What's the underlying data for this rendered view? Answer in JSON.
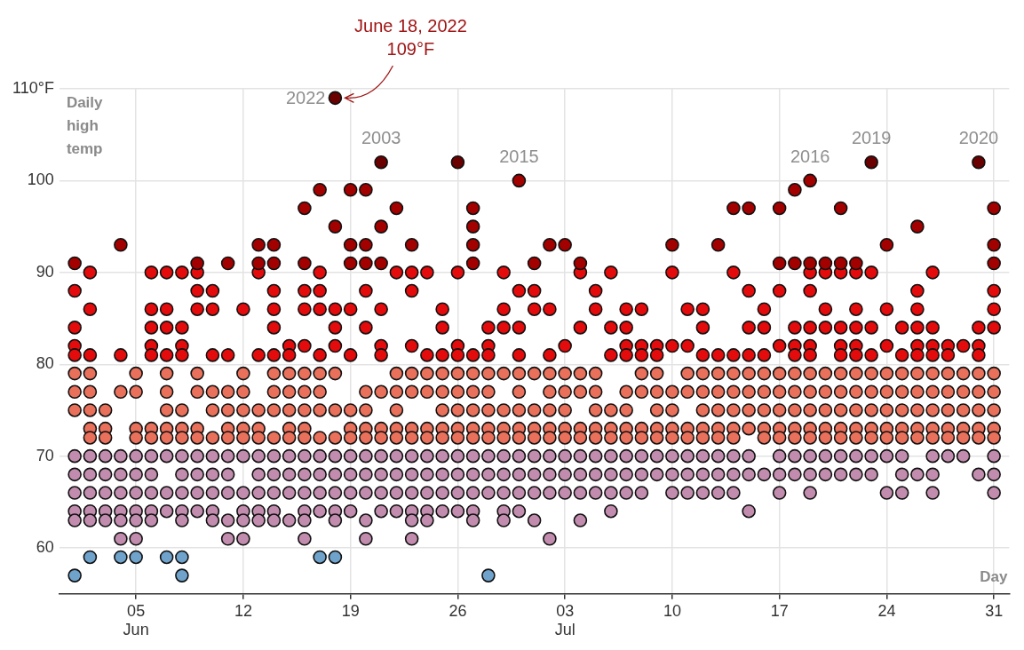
{
  "chart_data": {
    "type": "scatter",
    "ylabel": "Daily high temp",
    "xlabel": "Day",
    "marker": "circle",
    "grid": true,
    "legend": false,
    "xlim": [
      "--05-31",
      "--08-01"
    ],
    "xticks": [
      {
        "value": "--06-05",
        "label": "05\nJun"
      },
      {
        "value": "--06-12",
        "label": "12"
      },
      {
        "value": "--06-19",
        "label": "19"
      },
      {
        "value": "--06-26",
        "label": "26"
      },
      {
        "value": "--07-03",
        "label": "03\nJul"
      },
      {
        "value": "--07-10",
        "label": "10"
      },
      {
        "value": "--07-17",
        "label": "17"
      },
      {
        "value": "--07-24",
        "label": "24"
      },
      {
        "value": "--07-31",
        "label": "31"
      }
    ],
    "ylim": [
      55,
      110
    ],
    "yticks": [
      60,
      70,
      80,
      90,
      100,
      {
        "value": 110,
        "label": "110°F"
      }
    ],
    "annotations": [
      {
        "text": "June 18, 2022\n109°F",
        "x": "--06-18",
        "y": 109
      },
      {
        "text": "2022",
        "x": "--06-18",
        "y": 109
      },
      {
        "text": "2003",
        "x": "--06-21",
        "y": 102
      },
      {
        "text": "2015",
        "x": "--06-30",
        "y": 100
      },
      {
        "text": "2016",
        "x": "--07-19",
        "y": 100
      },
      {
        "text": "2019",
        "x": "--07-23",
        "y": 102
      },
      {
        "text": "2020",
        "x": "--07-30",
        "y": 102
      }
    ],
    "series": [
      {
        "color": "#6a0000",
        "x": [
          "--06-18",
          "--06-21",
          "--06-26",
          "--07-23",
          "--07-30"
        ],
        "values": [
          109,
          102,
          102,
          102,
          102
        ]
      },
      {
        "color": "#a30000",
        "x": [
          "--06-01",
          "--06-04",
          "--06-09",
          "--06-11",
          "--06-13",
          "--06-13",
          "--06-14",
          "--06-14",
          "--06-16",
          "--06-16",
          "--06-17",
          "--06-18",
          "--06-19",
          "--06-19",
          "--06-19",
          "--06-20",
          "--06-20",
          "--06-20",
          "--06-21",
          "--06-21",
          "--06-22",
          "--06-23",
          "--06-27",
          "--06-27",
          "--06-27",
          "--06-27",
          "--06-30",
          "--07-01",
          "--07-02",
          "--07-03",
          "--07-04",
          "--07-10",
          "--07-13",
          "--07-14",
          "--07-15",
          "--07-17",
          "--07-17",
          "--07-18",
          "--07-18",
          "--07-19",
          "--07-19",
          "--07-20",
          "--07-21",
          "--07-21",
          "--07-22",
          "--07-24",
          "--07-26",
          "--07-31",
          "--07-31",
          "--07-31"
        ],
        "values": [
          91,
          93,
          91,
          91,
          93,
          91,
          93,
          91,
          97,
          91,
          99,
          95,
          99,
          93,
          91,
          99,
          93,
          91,
          95,
          91,
          97,
          93,
          97,
          95,
          93,
          91,
          100,
          91,
          93,
          93,
          91,
          93,
          93,
          97,
          97,
          97,
          91,
          99,
          91,
          100,
          91,
          91,
          97,
          91,
          91,
          93,
          95,
          97,
          93,
          91
        ]
      },
      {
        "color": "#e30b0b",
        "x": [
          "--06-01",
          "--06-01",
          "--06-01",
          "--06-01",
          "--06-02",
          "--06-02",
          "--06-02",
          "--06-04",
          "--06-06",
          "--06-06",
          "--06-06",
          "--06-06",
          "--06-06",
          "--06-07",
          "--06-07",
          "--06-07",
          "--06-07",
          "--06-08",
          "--06-08",
          "--06-08",
          "--06-08",
          "--06-09",
          "--06-09",
          "--06-09",
          "--06-10",
          "--06-10",
          "--06-10",
          "--06-11",
          "--06-12",
          "--06-13",
          "--06-13",
          "--06-14",
          "--06-14",
          "--06-14",
          "--06-14",
          "--06-15",
          "--06-15",
          "--06-16",
          "--06-16",
          "--06-16",
          "--06-17",
          "--06-17",
          "--06-17",
          "--06-17",
          "--06-18",
          "--06-18",
          "--06-18",
          "--06-19",
          "--06-19",
          "--06-20",
          "--06-20",
          "--06-21",
          "--06-21",
          "--06-21",
          "--06-22",
          "--06-23",
          "--06-23",
          "--06-23",
          "--06-24",
          "--06-24",
          "--06-25",
          "--06-25",
          "--06-25",
          "--06-26",
          "--06-26",
          "--06-26",
          "--06-27",
          "--06-28",
          "--06-28",
          "--06-28",
          "--06-29",
          "--06-29",
          "--06-29",
          "--06-30",
          "--06-30",
          "--06-30",
          "--07-01",
          "--07-01",
          "--07-02",
          "--07-02",
          "--07-03",
          "--07-04",
          "--07-04",
          "--07-05",
          "--07-05",
          "--07-06",
          "--07-06",
          "--07-06",
          "--07-07",
          "--07-07",
          "--07-07",
          "--07-07",
          "--07-08",
          "--07-08",
          "--07-08",
          "--07-09",
          "--07-09",
          "--07-10",
          "--07-10",
          "--07-11",
          "--07-11",
          "--07-12",
          "--07-12",
          "--07-12",
          "--07-13",
          "--07-14",
          "--07-14",
          "--07-15",
          "--07-15",
          "--07-15",
          "--07-16",
          "--07-16",
          "--07-16",
          "--07-17",
          "--07-17",
          "--07-18",
          "--07-18",
          "--07-18",
          "--07-19",
          "--07-19",
          "--07-19",
          "--07-19",
          "--07-19",
          "--07-20",
          "--07-20",
          "--07-20",
          "--07-21",
          "--07-21",
          "--07-21",
          "--07-21",
          "--07-22",
          "--07-22",
          "--07-22",
          "--07-22",
          "--07-22",
          "--07-23",
          "--07-23",
          "--07-23",
          "--07-24",
          "--07-24",
          "--07-25",
          "--07-25",
          "--07-26",
          "--07-26",
          "--07-26",
          "--07-26",
          "--07-26",
          "--07-27",
          "--07-27",
          "--07-27",
          "--07-27",
          "--07-28",
          "--07-28",
          "--07-29",
          "--07-30",
          "--07-30",
          "--07-30",
          "--07-31",
          "--07-31",
          "--07-31"
        ],
        "values": [
          88,
          84,
          82,
          81,
          90,
          86,
          81,
          81,
          90,
          86,
          84,
          82,
          81,
          90,
          86,
          84,
          81,
          90,
          84,
          82,
          81,
          90,
          88,
          86,
          88,
          86,
          81,
          81,
          86,
          90,
          81,
          88,
          86,
          84,
          81,
          82,
          81,
          88,
          86,
          82,
          90,
          88,
          86,
          81,
          86,
          84,
          82,
          86,
          81,
          88,
          84,
          86,
          82,
          81,
          90,
          90,
          88,
          82,
          90,
          81,
          86,
          84,
          81,
          90,
          82,
          81,
          81,
          84,
          82,
          81,
          90,
          86,
          84,
          88,
          84,
          81,
          88,
          86,
          86,
          81,
          82,
          90,
          84,
          88,
          86,
          90,
          84,
          81,
          86,
          84,
          82,
          81,
          86,
          82,
          81,
          82,
          81,
          90,
          82,
          86,
          82,
          86,
          84,
          81,
          81,
          90,
          81,
          88,
          84,
          81,
          86,
          84,
          81,
          88,
          82,
          84,
          82,
          81,
          90,
          88,
          84,
          82,
          81,
          90,
          86,
          84,
          90,
          84,
          82,
          81,
          90,
          86,
          84,
          82,
          81,
          90,
          84,
          81,
          86,
          82,
          84,
          81,
          88,
          86,
          84,
          82,
          81,
          90,
          84,
          82,
          81,
          82,
          81,
          82,
          84,
          82,
          81,
          88,
          86,
          84
        ]
      },
      {
        "color": "#e9705a",
        "x": [
          "--06-01",
          "--06-01",
          "--06-01",
          "--06-02",
          "--06-02",
          "--06-02",
          "--06-02",
          "--06-02",
          "--06-03",
          "--06-03",
          "--06-03",
          "--06-04",
          "--06-05",
          "--06-05",
          "--06-05",
          "--06-05",
          "--06-06",
          "--06-06",
          "--06-07",
          "--06-07",
          "--06-07",
          "--06-07",
          "--06-07",
          "--06-08",
          "--06-08",
          "--06-08",
          "--06-09",
          "--06-09",
          "--06-09",
          "--06-09",
          "--06-10",
          "--06-10",
          "--06-10",
          "--06-11",
          "--06-11",
          "--06-11",
          "--06-11",
          "--06-12",
          "--06-12",
          "--06-12",
          "--06-12",
          "--06-12",
          "--06-13",
          "--06-13",
          "--06-13",
          "--06-14",
          "--06-14",
          "--06-14",
          "--06-14",
          "--06-15",
          "--06-15",
          "--06-15",
          "--06-15",
          "--06-15",
          "--06-16",
          "--06-16",
          "--06-16",
          "--06-16",
          "--06-16",
          "--06-17",
          "--06-17",
          "--06-17",
          "--06-17",
          "--06-18",
          "--06-18",
          "--06-18",
          "--06-19",
          "--06-19",
          "--06-19",
          "--06-20",
          "--06-20",
          "--06-20",
          "--06-20",
          "--06-21",
          "--06-21",
          "--06-21",
          "--06-22",
          "--06-22",
          "--06-22",
          "--06-22",
          "--06-22",
          "--06-23",
          "--06-23",
          "--06-23",
          "--06-23",
          "--06-24",
          "--06-24",
          "--06-24",
          "--06-24",
          "--06-25",
          "--06-25",
          "--06-25",
          "--06-25",
          "--06-25",
          "--06-26",
          "--06-26",
          "--06-26",
          "--06-26",
          "--06-26",
          "--06-27",
          "--06-27",
          "--06-27",
          "--06-27",
          "--06-27",
          "--06-28",
          "--06-28",
          "--06-28",
          "--06-28",
          "--06-28",
          "--06-29",
          "--06-29",
          "--06-29",
          "--06-29",
          "--06-30",
          "--06-30",
          "--06-30",
          "--06-30",
          "--06-30",
          "--07-01",
          "--07-01",
          "--07-01",
          "--07-01",
          "--07-02",
          "--07-02",
          "--07-02",
          "--07-02",
          "--07-02",
          "--07-03",
          "--07-03",
          "--07-03",
          "--07-03",
          "--07-03",
          "--07-04",
          "--07-04",
          "--07-04",
          "--07-04",
          "--07-05",
          "--07-05",
          "--07-05",
          "--07-05",
          "--07-05",
          "--07-06",
          "--07-06",
          "--07-06",
          "--07-07",
          "--07-07",
          "--07-07",
          "--07-07",
          "--07-08",
          "--07-08",
          "--07-08",
          "--07-08",
          "--07-09",
          "--07-09",
          "--07-09",
          "--07-09",
          "--07-09",
          "--07-10",
          "--07-10",
          "--07-10",
          "--07-10",
          "--07-11",
          "--07-11",
          "--07-11",
          "--07-11",
          "--07-12",
          "--07-12",
          "--07-12",
          "--07-12",
          "--07-12",
          "--07-13",
          "--07-13",
          "--07-13",
          "--07-13",
          "--07-13",
          "--07-14",
          "--07-14",
          "--07-14",
          "--07-14",
          "--07-14",
          "--07-15",
          "--07-15",
          "--07-15",
          "--07-15",
          "--07-16",
          "--07-16",
          "--07-16",
          "--07-16",
          "--07-16",
          "--07-17",
          "--07-17",
          "--07-17",
          "--07-17",
          "--07-17",
          "--07-18",
          "--07-18",
          "--07-18",
          "--07-18",
          "--07-18",
          "--07-19",
          "--07-19",
          "--07-19",
          "--07-19",
          "--07-19",
          "--07-20",
          "--07-20",
          "--07-20",
          "--07-20",
          "--07-20",
          "--07-21",
          "--07-21",
          "--07-21",
          "--07-21",
          "--07-21",
          "--07-22",
          "--07-22",
          "--07-22",
          "--07-22",
          "--07-22",
          "--07-23",
          "--07-23",
          "--07-23",
          "--07-23",
          "--07-23",
          "--07-24",
          "--07-24",
          "--07-24",
          "--07-24",
          "--07-24",
          "--07-25",
          "--07-25",
          "--07-25",
          "--07-25",
          "--07-25",
          "--07-26",
          "--07-26",
          "--07-26",
          "--07-26",
          "--07-26",
          "--07-27",
          "--07-27",
          "--07-27",
          "--07-27",
          "--07-27",
          "--07-28",
          "--07-28",
          "--07-28",
          "--07-28",
          "--07-28",
          "--07-29",
          "--07-29",
          "--07-29",
          "--07-29",
          "--07-29",
          "--07-30",
          "--07-30",
          "--07-30",
          "--07-30",
          "--07-30",
          "--07-31",
          "--07-31",
          "--07-31",
          "--07-31",
          "--07-31"
        ],
        "values": [
          79,
          77,
          75,
          79,
          77,
          75,
          73,
          72,
          75,
          73,
          72,
          77,
          79,
          77,
          73,
          72,
          73,
          72,
          79,
          77,
          75,
          73,
          72,
          75,
          73,
          72,
          79,
          77,
          73,
          72,
          77,
          75,
          72,
          77,
          75,
          73,
          72,
          79,
          77,
          75,
          73,
          72,
          75,
          73,
          72,
          79,
          77,
          75,
          72,
          79,
          77,
          75,
          73,
          72,
          79,
          77,
          75,
          73,
          72,
          79,
          77,
          75,
          72,
          79,
          75,
          72,
          75,
          73,
          72,
          77,
          75,
          73,
          72,
          77,
          73,
          72,
          79,
          77,
          75,
          73,
          72,
          79,
          77,
          73,
          72,
          79,
          77,
          73,
          72,
          79,
          77,
          75,
          73,
          72,
          79,
          77,
          75,
          73,
          72,
          79,
          77,
          75,
          73,
          72,
          79,
          77,
          75,
          73,
          72,
          79,
          75,
          73,
          72,
          79,
          77,
          75,
          73,
          72,
          79,
          75,
          73,
          72,
          79,
          77,
          75,
          73,
          72,
          79,
          77,
          75,
          73,
          72,
          79,
          77,
          73,
          72,
          79,
          77,
          75,
          73,
          72,
          75,
          73,
          72,
          77,
          75,
          73,
          72,
          79,
          77,
          73,
          72,
          79,
          77,
          75,
          73,
          72,
          77,
          75,
          73,
          72,
          79,
          77,
          73,
          72,
          79,
          77,
          75,
          73,
          72,
          79,
          77,
          75,
          73,
          72,
          79,
          77,
          75,
          73,
          72,
          79,
          77,
          75,
          73,
          79,
          77,
          75,
          73,
          72,
          79,
          77,
          75,
          73,
          72,
          79,
          77,
          75,
          73,
          72,
          79,
          77,
          75,
          73,
          72,
          79,
          77,
          75,
          73,
          72,
          79,
          77,
          75,
          73,
          72,
          79,
          77,
          75,
          73,
          72,
          79,
          77,
          75,
          73,
          72,
          79,
          77,
          75,
          73,
          72,
          79,
          77,
          75,
          73,
          72,
          79,
          77,
          75,
          73,
          72,
          79,
          77,
          75,
          73,
          72,
          79,
          77,
          75,
          73,
          72,
          79,
          77,
          75,
          73,
          72,
          79,
          77,
          75,
          73,
          72,
          79,
          77,
          75,
          73,
          72
        ]
      },
      {
        "color": "#c18cad",
        "x": [
          "--06-01",
          "--06-01",
          "--06-01",
          "--06-01",
          "--06-01",
          "--06-02",
          "--06-02",
          "--06-02",
          "--06-02",
          "--06-02",
          "--06-03",
          "--06-03",
          "--06-03",
          "--06-03",
          "--06-03",
          "--06-04",
          "--06-04",
          "--06-04",
          "--06-04",
          "--06-04",
          "--06-04",
          "--06-05",
          "--06-05",
          "--06-05",
          "--06-05",
          "--06-05",
          "--06-05",
          "--06-06",
          "--06-06",
          "--06-06",
          "--06-06",
          "--06-06",
          "--06-07",
          "--06-07",
          "--06-07",
          "--06-08",
          "--06-08",
          "--06-08",
          "--06-08",
          "--06-08",
          "--06-09",
          "--06-09",
          "--06-09",
          "--06-09",
          "--06-10",
          "--06-10",
          "--06-10",
          "--06-10",
          "--06-10",
          "--06-11",
          "--06-11",
          "--06-11",
          "--06-11",
          "--06-11",
          "--06-12",
          "--06-12",
          "--06-12",
          "--06-12",
          "--06-12",
          "--06-13",
          "--06-13",
          "--06-13",
          "--06-13",
          "--06-13",
          "--06-14",
          "--06-14",
          "--06-14",
          "--06-14",
          "--06-14",
          "--06-15",
          "--06-15",
          "--06-15",
          "--06-15",
          "--06-16",
          "--06-16",
          "--06-16",
          "--06-16",
          "--06-16",
          "--06-16",
          "--06-17",
          "--06-17",
          "--06-17",
          "--06-17",
          "--06-18",
          "--06-18",
          "--06-18",
          "--06-18",
          "--06-18",
          "--06-19",
          "--06-19",
          "--06-19",
          "--06-19",
          "--06-20",
          "--06-20",
          "--06-20",
          "--06-20",
          "--06-20",
          "--06-21",
          "--06-21",
          "--06-21",
          "--06-21",
          "--06-22",
          "--06-22",
          "--06-22",
          "--06-22",
          "--06-23",
          "--06-23",
          "--06-23",
          "--06-23",
          "--06-23",
          "--06-23",
          "--06-24",
          "--06-24",
          "--06-24",
          "--06-24",
          "--06-24",
          "--06-25",
          "--06-25",
          "--06-25",
          "--06-25",
          "--06-26",
          "--06-26",
          "--06-26",
          "--06-26",
          "--06-27",
          "--06-27",
          "--06-27",
          "--06-27",
          "--06-27",
          "--06-28",
          "--06-28",
          "--06-28",
          "--06-29",
          "--06-29",
          "--06-29",
          "--06-29",
          "--06-29",
          "--06-30",
          "--06-30",
          "--06-30",
          "--06-30",
          "--07-01",
          "--07-01",
          "--07-01",
          "--07-01",
          "--07-02",
          "--07-02",
          "--07-02",
          "--07-02",
          "--07-03",
          "--07-03",
          "--07-03",
          "--07-04",
          "--07-04",
          "--07-04",
          "--07-04",
          "--07-05",
          "--07-05",
          "--07-05",
          "--07-06",
          "--07-06",
          "--07-06",
          "--07-06",
          "--07-07",
          "--07-07",
          "--07-07",
          "--07-08",
          "--07-08",
          "--07-08",
          "--07-09",
          "--07-09",
          "--07-10",
          "--07-10",
          "--07-10",
          "--07-11",
          "--07-11",
          "--07-11",
          "--07-12",
          "--07-12",
          "--07-12",
          "--07-13",
          "--07-13",
          "--07-13",
          "--07-14",
          "--07-14",
          "--07-14",
          "--07-15",
          "--07-15",
          "--07-15",
          "--07-16",
          "--07-17",
          "--07-17",
          "--07-17",
          "--07-18",
          "--07-18",
          "--07-19",
          "--07-19",
          "--07-19",
          "--07-20",
          "--07-20",
          "--07-21",
          "--07-21",
          "--07-22",
          "--07-22",
          "--07-23",
          "--07-23",
          "--07-24",
          "--07-24",
          "--07-25",
          "--07-25",
          "--07-25",
          "--07-26",
          "--07-27",
          "--07-27",
          "--07-27",
          "--07-28",
          "--07-29",
          "--07-30",
          "--07-31",
          "--07-31",
          "--07-31"
        ],
        "values": [
          70,
          68,
          66,
          64,
          63,
          70,
          68,
          66,
          64,
          63,
          70,
          68,
          66,
          64,
          63,
          70,
          68,
          66,
          64,
          63,
          61,
          70,
          68,
          66,
          64,
          63,
          61,
          70,
          68,
          66,
          64,
          63,
          70,
          66,
          64,
          70,
          68,
          66,
          64,
          63,
          70,
          68,
          66,
          64,
          70,
          68,
          66,
          64,
          63,
          70,
          68,
          66,
          63,
          61,
          70,
          66,
          64,
          63,
          61,
          70,
          68,
          66,
          64,
          63,
          70,
          68,
          66,
          64,
          63,
          70,
          68,
          66,
          63,
          70,
          68,
          66,
          64,
          63,
          61,
          70,
          68,
          66,
          64,
          70,
          68,
          66,
          64,
          63,
          70,
          68,
          66,
          64,
          70,
          68,
          66,
          63,
          61,
          70,
          68,
          66,
          64,
          70,
          68,
          66,
          64,
          70,
          68,
          66,
          64,
          63,
          61,
          70,
          68,
          66,
          64,
          63,
          70,
          68,
          66,
          64,
          70,
          68,
          66,
          64,
          70,
          68,
          66,
          64,
          63,
          70,
          68,
          66,
          70,
          68,
          66,
          64,
          63,
          70,
          68,
          66,
          64,
          70,
          68,
          66,
          63,
          70,
          68,
          66,
          61,
          70,
          68,
          66,
          70,
          68,
          66,
          63,
          70,
          68,
          66,
          70,
          68,
          66,
          64,
          70,
          68,
          66,
          70,
          68,
          66,
          70,
          68,
          70,
          68,
          66,
          70,
          68,
          66,
          70,
          68,
          66,
          70,
          68,
          66,
          70,
          68,
          66,
          70,
          68,
          64,
          68,
          70,
          68,
          66,
          70,
          68,
          70,
          68,
          66,
          70,
          68,
          70,
          68,
          70,
          68,
          70,
          68,
          70,
          66,
          70,
          68,
          66,
          68,
          70,
          68,
          66,
          70,
          70,
          68,
          70,
          68,
          66
        ]
      },
      {
        "color": "#6fa3cc",
        "x": [
          "--06-01",
          "--06-02",
          "--06-04",
          "--06-05",
          "--06-07",
          "--06-08",
          "--06-08",
          "--06-17",
          "--06-18",
          "--06-28"
        ],
        "values": [
          57,
          59,
          59,
          59,
          59,
          59,
          57,
          59,
          59,
          57
        ]
      }
    ]
  }
}
